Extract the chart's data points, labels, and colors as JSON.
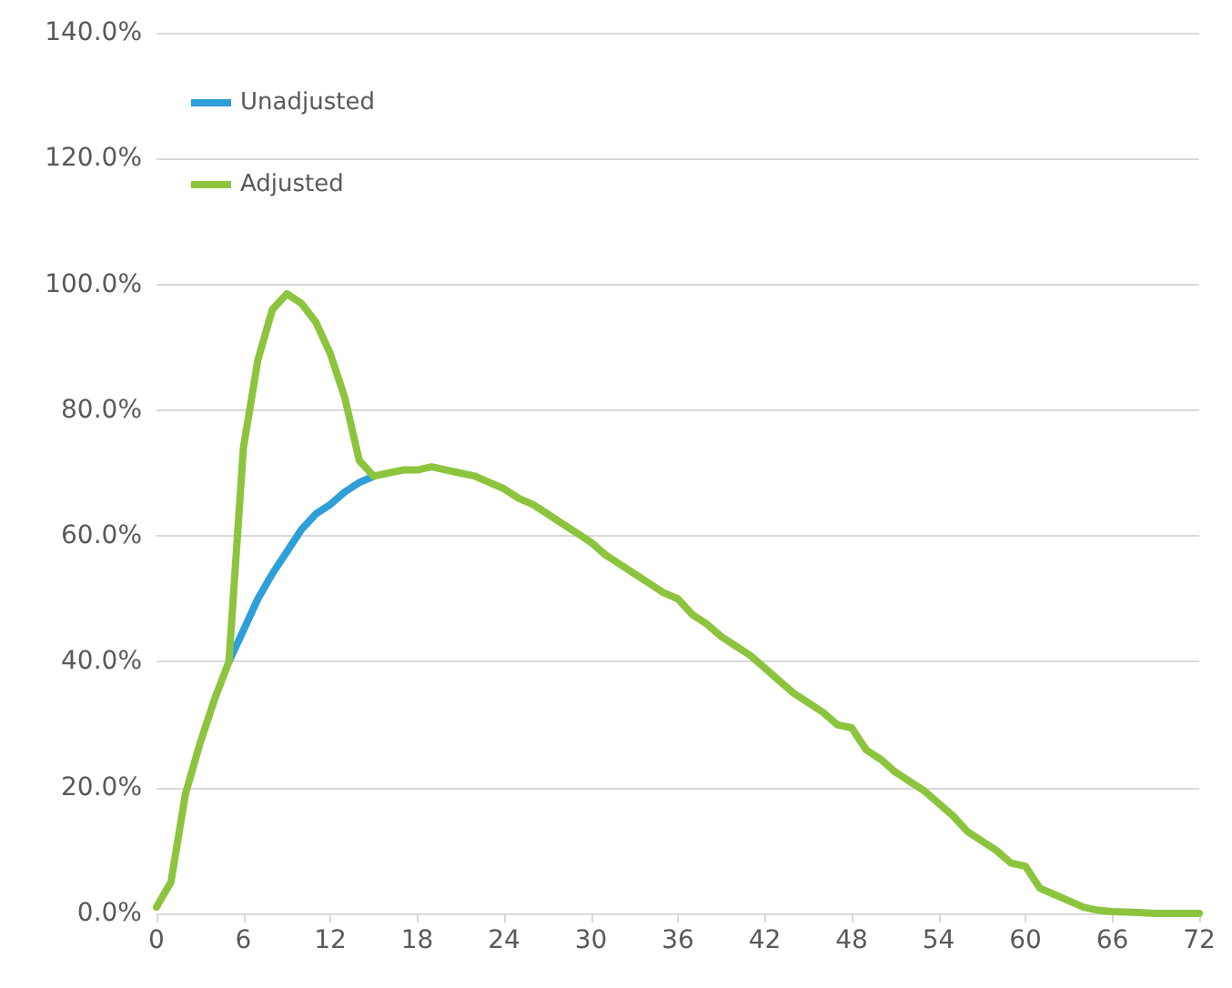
{
  "chart_data": {
    "type": "line",
    "x": [
      0,
      1,
      2,
      3,
      4,
      5,
      6,
      7,
      8,
      9,
      10,
      11,
      12,
      13,
      14,
      15,
      16,
      17,
      18,
      19,
      20,
      21,
      22,
      23,
      24,
      25,
      26,
      27,
      28,
      29,
      30,
      31,
      32,
      33,
      34,
      35,
      36,
      37,
      38,
      39,
      40,
      41,
      42,
      43,
      44,
      45,
      46,
      47,
      48,
      49,
      50,
      51,
      52,
      53,
      54,
      55,
      56,
      57,
      58,
      59,
      60,
      61,
      62,
      63,
      64,
      65,
      66,
      67,
      68,
      69,
      70,
      71,
      72
    ],
    "series": [
      {
        "name": "Unadjusted",
        "color": "#2e9fd8",
        "values": [
          null,
          null,
          null,
          null,
          null,
          40,
          45,
          50,
          54,
          57.5,
          61,
          63.5,
          65,
          67,
          68.5,
          69.5,
          null,
          null,
          null,
          null,
          null,
          null,
          null,
          null,
          null,
          null,
          null,
          null,
          null,
          null,
          null,
          null,
          null,
          null,
          null,
          null,
          null,
          null,
          null,
          null,
          null,
          null,
          null,
          null,
          null,
          null,
          null,
          null,
          null,
          null,
          null,
          null,
          null,
          null,
          null,
          null,
          null,
          null,
          null,
          null,
          null,
          null,
          null,
          null,
          null,
          null,
          null,
          null,
          null,
          null,
          null,
          null,
          null
        ]
      },
      {
        "name": "Adjusted",
        "color": "#8cc43e",
        "values": [
          1,
          5,
          19,
          27,
          34,
          40,
          74,
          88,
          96,
          98.5,
          97,
          94,
          89,
          82,
          72,
          69.5,
          70,
          70.5,
          70.5,
          71,
          70.5,
          70,
          69.5,
          68.5,
          67.5,
          66,
          65,
          63.5,
          62,
          60.5,
          59,
          57,
          55.5,
          54,
          52.5,
          51,
          50,
          47.5,
          46,
          44,
          42.5,
          41,
          39,
          37,
          35,
          33.5,
          32,
          30,
          29.5,
          26,
          24.5,
          22.5,
          21,
          19.5,
          17.5,
          15.5,
          13,
          11.5,
          10,
          8,
          7.5,
          4,
          3,
          2,
          1,
          0.5,
          0.3,
          0.2,
          0.1,
          0,
          0,
          0,
          0
        ]
      }
    ],
    "xlim": [
      0,
      72
    ],
    "xticks": [
      0,
      6,
      12,
      18,
      24,
      30,
      36,
      42,
      48,
      54,
      60,
      66,
      72
    ],
    "ylim": [
      0,
      140
    ],
    "yticks": [
      {
        "value": 0,
        "label": "0.0%"
      },
      {
        "value": 20,
        "label": "20.0%"
      },
      {
        "value": 40,
        "label": "40.0%"
      },
      {
        "value": 60,
        "label": "60.0%"
      },
      {
        "value": 80,
        "label": "80.0%"
      },
      {
        "value": 100,
        "label": "100.0%"
      },
      {
        "value": 120,
        "label": "120.0%"
      },
      {
        "value": 140,
        "label": "140.0%"
      }
    ],
    "grid": "y",
    "legend": "top left",
    "marker": "none",
    "line_style": "solid"
  }
}
